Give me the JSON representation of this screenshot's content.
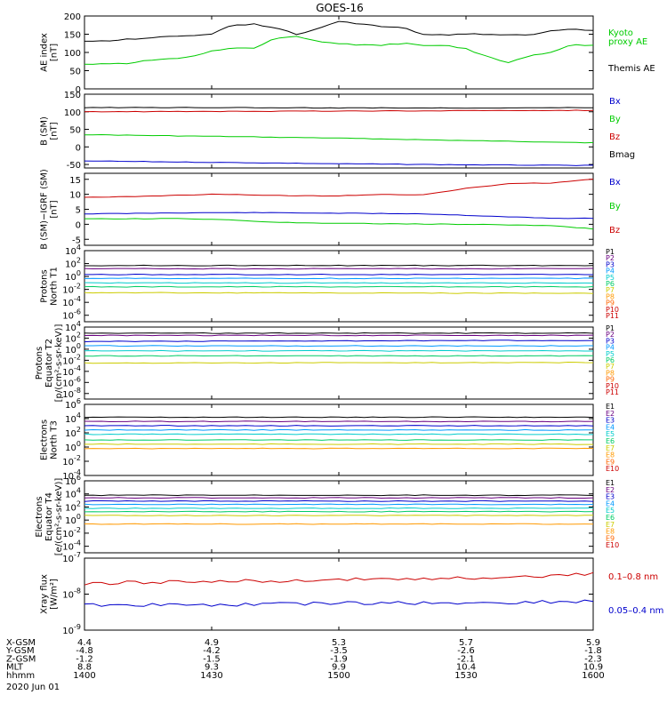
{
  "title": "GOES-16",
  "colors": {
    "black": "#000000",
    "green": "#00cc00",
    "red": "#cc0000",
    "blue": "#0000cc",
    "e_colors": [
      "#000000",
      "#6a0080",
      "#0000cc",
      "#0099ff",
      "#00cccc",
      "#00cc66",
      "#cccc00",
      "#ff9900",
      "#ff6600",
      "#cc0000",
      "#cc0000"
    ]
  },
  "chart_data": [
    {
      "type": "line",
      "panel_id": "ae",
      "ylabel": [
        "AE index",
        "[nT]"
      ],
      "ylim": [
        0,
        200
      ],
      "yticks": [
        "200",
        "150",
        "100",
        "50",
        "0"
      ],
      "ytick_values": [
        200,
        150,
        100,
        50,
        0
      ],
      "series": [
        {
          "name": "Themis AE",
          "color_key": "black",
          "x": [
            0,
            5,
            10,
            15,
            20,
            25,
            30,
            35,
            40,
            45,
            50,
            55,
            60,
            65,
            70,
            75,
            80,
            85,
            90,
            95,
            100,
            105,
            110,
            115,
            120
          ],
          "y": [
            130,
            132,
            136,
            140,
            145,
            145,
            150,
            175,
            178,
            168,
            150,
            165,
            185,
            178,
            172,
            168,
            150,
            148,
            150,
            150,
            148,
            148,
            160,
            165,
            160
          ]
        },
        {
          "name": "Kyoto proxy AE",
          "color_key": "green",
          "x": [
            0,
            5,
            10,
            15,
            20,
            25,
            30,
            35,
            40,
            45,
            50,
            55,
            60,
            65,
            70,
            75,
            80,
            85,
            90,
            95,
            100,
            105,
            110,
            115,
            120
          ],
          "y": [
            68,
            68,
            70,
            78,
            82,
            88,
            105,
            112,
            112,
            140,
            145,
            130,
            125,
            120,
            120,
            125,
            120,
            120,
            110,
            88,
            72,
            90,
            100,
            120,
            120
          ]
        }
      ]
    },
    {
      "type": "line",
      "panel_id": "bsm",
      "ylabel": [
        "B (SM)",
        "[nT]"
      ],
      "ylim": [
        -60,
        150
      ],
      "yticks": [
        "150",
        "100",
        "50",
        "0",
        "-50"
      ],
      "ytick_values": [
        150,
        100,
        50,
        0,
        -50
      ],
      "series": [
        {
          "name": "Bx",
          "color_key": "blue",
          "x": [
            0,
            30,
            60,
            90,
            120
          ],
          "y": [
            -40,
            -44,
            -48,
            -51,
            -53
          ]
        },
        {
          "name": "By",
          "color_key": "green",
          "x": [
            0,
            30,
            60,
            90,
            120
          ],
          "y": [
            35,
            30,
            25,
            18,
            12
          ]
        },
        {
          "name": "Bz",
          "color_key": "red",
          "x": [
            0,
            30,
            60,
            90,
            120
          ],
          "y": [
            100,
            101,
            102,
            103,
            104
          ]
        },
        {
          "name": "Bmag",
          "color_key": "black",
          "x": [
            0,
            30,
            60,
            90,
            120
          ],
          "y": [
            112,
            112,
            111,
            111,
            112
          ]
        }
      ]
    },
    {
      "type": "line",
      "panel_id": "bdiff",
      "ylabel": [
        "B (SM)−IGRF (SM)",
        "[nT]"
      ],
      "ylim": [
        -7,
        17
      ],
      "yticks": [
        "15",
        "10",
        "5",
        "0",
        "-5"
      ],
      "ytick_values": [
        15,
        10,
        5,
        0,
        -5
      ],
      "series": [
        {
          "name": "Bx",
          "color_key": "blue",
          "x": [
            0,
            10,
            20,
            30,
            40,
            50,
            60,
            70,
            80,
            90,
            100,
            110,
            120
          ],
          "y": [
            3.5,
            3.6,
            3.8,
            3.9,
            3.9,
            3.8,
            3.7,
            3.6,
            3.5,
            3.0,
            2.5,
            2.0,
            2.0
          ]
        },
        {
          "name": "By",
          "color_key": "green",
          "x": [
            0,
            10,
            20,
            30,
            40,
            50,
            60,
            70,
            80,
            90,
            100,
            110,
            120
          ],
          "y": [
            1.8,
            1.8,
            1.9,
            1.7,
            1.0,
            0.5,
            0.3,
            0.2,
            0.1,
            0.0,
            -0.2,
            -0.5,
            -1.5
          ]
        },
        {
          "name": "Bz",
          "color_key": "red",
          "x": [
            0,
            10,
            20,
            30,
            40,
            50,
            60,
            70,
            80,
            90,
            100,
            110,
            120
          ],
          "y": [
            9,
            9.2,
            9.6,
            10,
            9.8,
            9.5,
            9.5,
            10,
            9.8,
            12,
            13.5,
            13.8,
            15
          ]
        }
      ]
    },
    {
      "type": "line",
      "panel_id": "pn",
      "ylabel": [
        "Protons",
        "North T1"
      ],
      "log": true,
      "ylim": [
        -7,
        4
      ],
      "ytick_exps": [
        4,
        2,
        0,
        -2,
        -4,
        -6
      ],
      "series": [
        {
          "name": "P1",
          "logy": [
            1.7,
            1.7
          ]
        },
        {
          "name": "P2",
          "logy": [
            1.2,
            1.2
          ]
        },
        {
          "name": "P3",
          "logy": [
            0.3,
            0.3
          ]
        },
        {
          "name": "P4",
          "logy": [
            -0.3,
            -0.3
          ]
        },
        {
          "name": "P5",
          "logy": [
            -1.0,
            -1.0
          ]
        },
        {
          "name": "P6",
          "logy": [
            -1.6,
            -1.6
          ]
        },
        {
          "name": "P7",
          "logy": [
            -2.5,
            -2.6
          ]
        }
      ],
      "legend": [
        "P1",
        "P2",
        "P3",
        "P4",
        "P5",
        "P6",
        "P7",
        "P8",
        "P9",
        "P10",
        "P11"
      ]
    },
    {
      "type": "line",
      "panel_id": "pe",
      "ylabel": [
        "Protons",
        "Equator T2",
        "[p/(cm²-s-sr-keV)]"
      ],
      "log": true,
      "ylim": [
        -9,
        4
      ],
      "ytick_exps": [
        4,
        2,
        0,
        -2,
        -4,
        -6,
        -8
      ],
      "series": [
        {
          "name": "P1",
          "logy": [
            2.9,
            2.9
          ]
        },
        {
          "name": "P2",
          "logy": [
            2.5,
            2.5
          ]
        },
        {
          "name": "P3",
          "logy": [
            1.4,
            1.6
          ]
        },
        {
          "name": "P4",
          "logy": [
            0.6,
            0.6
          ]
        },
        {
          "name": "P5",
          "logy": [
            -0.3,
            -0.3
          ]
        },
        {
          "name": "P6",
          "logy": [
            -1.2,
            -1.2
          ]
        },
        {
          "name": "P7",
          "logy": [
            -2.5,
            -2.4
          ]
        }
      ],
      "legend": [
        "P1",
        "P2",
        "P3",
        "P4",
        "P5",
        "P6",
        "P7",
        "P8",
        "P9",
        "P10",
        "P11"
      ]
    },
    {
      "type": "line",
      "panel_id": "en",
      "ylabel": [
        "Electrons",
        "North T3"
      ],
      "log": true,
      "ylim": [
        -4,
        6
      ],
      "ytick_exps": [
        6,
        4,
        2,
        0,
        -2,
        -4
      ],
      "series": [
        {
          "name": "E1",
          "logy": [
            4.2,
            4.2
          ]
        },
        {
          "name": "E2",
          "logy": [
            3.6,
            3.6
          ]
        },
        {
          "name": "E3",
          "logy": [
            3.0,
            3.0
          ]
        },
        {
          "name": "E4",
          "logy": [
            2.4,
            2.4
          ]
        },
        {
          "name": "E5",
          "logy": [
            1.8,
            1.8
          ]
        },
        {
          "name": "E6",
          "logy": [
            1.0,
            1.0
          ]
        },
        {
          "name": "E7",
          "logy": [
            0.4,
            0.4
          ]
        },
        {
          "name": "E8",
          "logy": [
            -0.2,
            -0.2
          ]
        }
      ],
      "legend": [
        "E1",
        "E2",
        "E3",
        "E4",
        "E5",
        "E6",
        "E7",
        "E8",
        "E9",
        "E10"
      ]
    },
    {
      "type": "line",
      "panel_id": "ee",
      "ylabel": [
        "Electrons",
        "Equator T4",
        "[e/(cm²-s-sr-keV)]"
      ],
      "log": true,
      "ylim": [
        -5,
        6
      ],
      "ytick_exps": [
        6,
        4,
        2,
        0,
        -2,
        -4
      ],
      "series": [
        {
          "name": "E1",
          "logy": [
            3.8,
            3.8
          ]
        },
        {
          "name": "E2",
          "logy": [
            3.4,
            3.4
          ]
        },
        {
          "name": "E3",
          "logy": [
            2.9,
            2.9
          ]
        },
        {
          "name": "E4",
          "logy": [
            2.4,
            2.4
          ]
        },
        {
          "name": "E5",
          "logy": [
            1.8,
            1.8
          ]
        },
        {
          "name": "E6",
          "logy": [
            1.3,
            1.3
          ]
        },
        {
          "name": "E7",
          "logy": [
            0.7,
            0.7
          ]
        },
        {
          "name": "E8",
          "logy": [
            -0.6,
            -0.6
          ]
        }
      ],
      "legend": [
        "E1",
        "E2",
        "E3",
        "E4",
        "E5",
        "E6",
        "E7",
        "E8",
        "E9",
        "E10"
      ]
    },
    {
      "type": "line",
      "panel_id": "xray",
      "ylabel": [
        "Xray flux",
        "[W/m²]"
      ],
      "log": true,
      "ylim": [
        -9,
        -7
      ],
      "ytick_exps": [
        -7,
        -8,
        -9
      ],
      "series": [
        {
          "name": "0.1–0.8 nm",
          "color_key": "red",
          "logy": [
            -7.7,
            -7.65,
            -7.6,
            -7.55,
            -7.45
          ]
        },
        {
          "name": "0.05–0.4 nm",
          "color_key": "blue",
          "logy": [
            -8.3,
            -8.3,
            -8.25,
            -8.25,
            -8.2
          ]
        }
      ]
    }
  ],
  "time_axis": {
    "row_labels": [
      "X-GSM",
      "Y-GSM",
      "Z-GSM",
      "MLT",
      "hhmm"
    ],
    "date": "2020 Jun 01",
    "columns": [
      [
        "4.4",
        "-4.8",
        "-1.2",
        "8.8",
        "1400"
      ],
      [
        "4.9",
        "-4.2",
        "-1.5",
        "9.3",
        "1430"
      ],
      [
        "5.3",
        "-3.5",
        "-1.9",
        "9.9",
        "1500"
      ],
      [
        "5.7",
        "-2.6",
        "-2.1",
        "10.4",
        "1530"
      ],
      [
        "5.9",
        "-1.8",
        "-2.3",
        "10.9",
        "1600"
      ]
    ]
  },
  "legend_labels": {
    "ae": [
      "Kyoto",
      "proxy AE",
      "Themis AE"
    ],
    "bsm": [
      "Bx",
      "By",
      "Bz",
      "Bmag"
    ],
    "bdiff": [
      "Bx",
      "By",
      "Bz"
    ],
    "xray": [
      "0.1–0.8 nm",
      "0.05–0.4 nm"
    ]
  }
}
